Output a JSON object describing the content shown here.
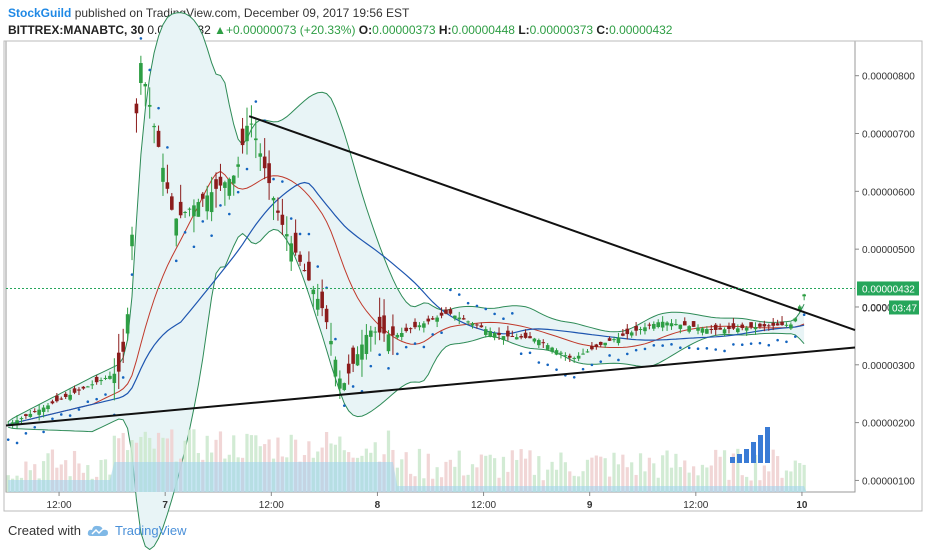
{
  "header": {
    "publisher": "StockGuild",
    "published_text": "published on TradingView.com, December 09, 2017 19:56 EST",
    "symbol": "BITTREX:MANABTC, 30",
    "last": "0.00000432",
    "arrow": "▲",
    "change": "+0.00000073 (+20.33%)",
    "o_label": "O:",
    "o_value": "0.00000373",
    "h_label": "H:",
    "h_value": "0.00000448",
    "l_label": "L:",
    "l_value": "0.00000373",
    "c_label": "C:",
    "c_value": "0.00000432"
  },
  "footer": {
    "created_with": "Created with",
    "logo_icon": "tradingview-cloud-icon",
    "brand": "TradingView"
  },
  "colors": {
    "up": "#2e9e44",
    "down": "#8b1c1c",
    "bb": "#2e8b57",
    "bb_fill": "#e8f4f6",
    "psar": "#1565c0",
    "ma_red": "#c0392b",
    "ma_blue": "#1e56b0",
    "volume": "#9ed3ef",
    "last_price": "#26a65b"
  },
  "chart_data": {
    "type": "candlestick",
    "symbol": "BITTREX:MANABTC",
    "interval": "30",
    "y_axis": {
      "ticks": [
        "0.00000800",
        "0.00000700",
        "0.00000600",
        "0.00000500",
        "0.00000400",
        "0.00000300",
        "0.00000200",
        "0.00000100"
      ],
      "tick_values": [
        8.0,
        7.0,
        6.0,
        5.0,
        4.0,
        3.0,
        2.0,
        1.0
      ],
      "range": [
        0.8,
        8.6
      ],
      "unit_scale": 1e-06
    },
    "x_axis": {
      "ticks": [
        "12:00",
        "7",
        "12:00",
        "8",
        "12:00",
        "9",
        "12:00",
        "10"
      ],
      "tick_hours": [
        12,
        24,
        36,
        48,
        60,
        72,
        84,
        96
      ],
      "range": [
        6,
        102
      ]
    },
    "last_price_label": "0.00000432",
    "countdown_label": "03:47",
    "countdown_prefix": "0.000",
    "key_points": [
      {
        "hour": 6,
        "price": 1.95
      },
      {
        "hour": 19,
        "price": 2.9
      },
      {
        "hour": 20,
        "price": 4.2
      },
      {
        "hour": 21,
        "price": 8.4
      },
      {
        "hour": 25,
        "price": 5.5
      },
      {
        "hour": 32,
        "price": 6.3
      },
      {
        "hour": 33.5,
        "price": 7.3
      },
      {
        "hour": 37,
        "price": 5.5
      },
      {
        "hour": 42,
        "price": 3.9
      },
      {
        "hour": 44,
        "price": 2.6
      },
      {
        "hour": 47,
        "price": 3.6
      },
      {
        "hour": 50,
        "price": 3.5
      },
      {
        "hour": 56,
        "price": 3.9
      },
      {
        "hour": 62,
        "price": 3.5
      },
      {
        "hour": 66,
        "price": 3.45
      },
      {
        "hour": 70,
        "price": 3.1
      },
      {
        "hour": 74,
        "price": 3.4
      },
      {
        "hour": 80,
        "price": 3.75
      },
      {
        "hour": 86,
        "price": 3.6
      },
      {
        "hour": 95,
        "price": 3.7
      },
      {
        "hour": 96.5,
        "price": 4.32
      }
    ],
    "trendlines": [
      {
        "name": "upper",
        "from": {
          "hour": 33.5,
          "price": 7.3
        },
        "to": {
          "hour": 102,
          "price": 3.6
        }
      },
      {
        "name": "lower",
        "from": {
          "hour": 6,
          "price": 1.95
        },
        "to": {
          "hour": 102,
          "price": 3.3
        }
      }
    ]
  }
}
